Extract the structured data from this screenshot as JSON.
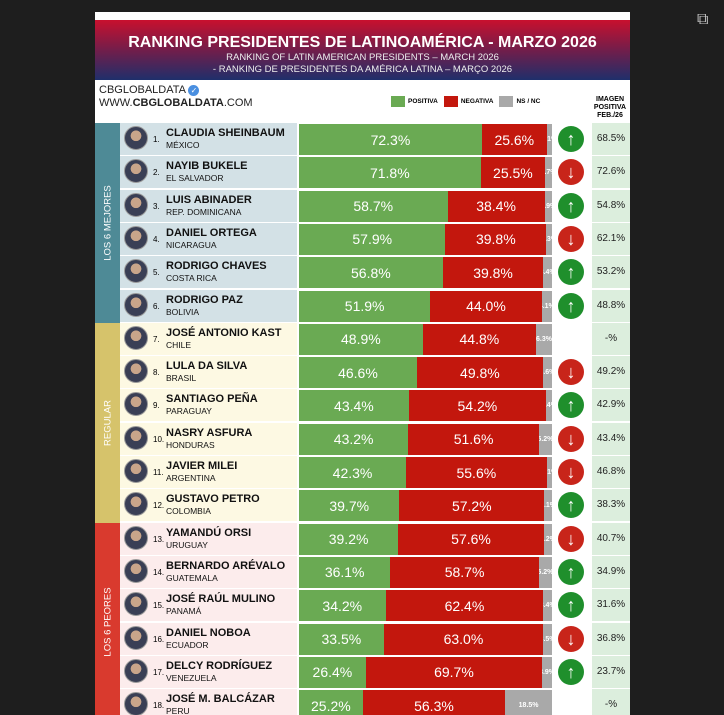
{
  "chart_data": {
    "type": "bar",
    "stacked": true,
    "title": "RANKING PRESIDENTES DE LATINOAMÉRICA - MARZO 2026",
    "subtitle": [
      "RANKING OF LATIN AMERICAN PRESIDENTS – MARCH 2026",
      "- RANKING DE PRESIDENTES DA AMÉRICA LATINA – MARÇO 2026"
    ],
    "legend": [
      {
        "label": "POSITIVA",
        "color": "#6aaa53"
      },
      {
        "label": "NEGATIVA",
        "color": "#c3170d"
      },
      {
        "label": "NS / NC",
        "color": "#a9a9a9"
      }
    ],
    "prev_header": "IMAGEN POSITIVA FEB./26",
    "groups": [
      {
        "label": "LOS 6 MEJORES",
        "color": "#4e8a96",
        "bg": "#d3e1e6"
      },
      {
        "label": "REGULAR",
        "color": "#d6c36b",
        "bg": "#fdf9e3"
      },
      {
        "label": "LOS 6 PEORES",
        "color": "#d93a2e",
        "bg": "#fcecec"
      }
    ],
    "rows": [
      {
        "rank": "1.",
        "name": "CLAUDIA SHEINBAUM",
        "country": "MÉXICO",
        "pos": 72.3,
        "neg": 25.6,
        "nsnc": 2.1,
        "trend": "up",
        "feb": "68.5%",
        "group": 0
      },
      {
        "rank": "2.",
        "name": "NAYIB BUKELE",
        "country": "EL SALVADOR",
        "pos": 71.8,
        "neg": 25.5,
        "nsnc": 2.7,
        "trend": "down",
        "feb": "72.6%",
        "group": 0
      },
      {
        "rank": "3.",
        "name": "LUIS ABINADER",
        "country": "REP. DOMINICANA",
        "pos": 58.7,
        "neg": 38.4,
        "nsnc": 2.9,
        "trend": "up",
        "feb": "54.8%",
        "group": 0
      },
      {
        "rank": "4.",
        "name": "DANIEL ORTEGA",
        "country": "NICARAGUA",
        "pos": 57.9,
        "neg": 39.8,
        "nsnc": 2.3,
        "trend": "down",
        "feb": "62.1%",
        "group": 0
      },
      {
        "rank": "5.",
        "name": "RODRIGO CHAVES",
        "country": "COSTA RICA",
        "pos": 56.8,
        "neg": 39.8,
        "nsnc": 3.4,
        "trend": "up",
        "feb": "53.2%",
        "group": 0
      },
      {
        "rank": "6.",
        "name": "RODRIGO PAZ",
        "country": "BOLIVIA",
        "pos": 51.9,
        "neg": 44.0,
        "nsnc": 4.1,
        "trend": "up",
        "feb": "48.8%",
        "group": 0
      },
      {
        "rank": "7.",
        "name": "JOSÉ ANTONIO KAST",
        "country": "CHILE",
        "pos": 48.9,
        "neg": 44.8,
        "nsnc": 6.3,
        "trend": "",
        "feb": "-%",
        "group": 1
      },
      {
        "rank": "8.",
        "name": "LULA DA SILVA",
        "country": "BRASIL",
        "pos": 46.6,
        "neg": 49.8,
        "nsnc": 3.6,
        "trend": "down",
        "feb": "49.2%",
        "group": 1
      },
      {
        "rank": "9.",
        "name": "SANTIAGO PEÑA",
        "country": "PARAGUAY",
        "pos": 43.4,
        "neg": 54.2,
        "nsnc": 2.4,
        "trend": "up",
        "feb": "42.9%",
        "group": 1
      },
      {
        "rank": "10.",
        "name": "NASRY ASFURA",
        "country": "HONDURAS",
        "pos": 43.2,
        "neg": 51.6,
        "nsnc": 5.2,
        "trend": "down",
        "feb": "43.4%",
        "group": 1
      },
      {
        "rank": "11.",
        "name": "JAVIER MILEI",
        "country": "ARGENTINA",
        "pos": 42.3,
        "neg": 55.6,
        "nsnc": 2.1,
        "trend": "down",
        "feb": "46.8%",
        "group": 1
      },
      {
        "rank": "12.",
        "name": "GUSTAVO PETRO",
        "country": "COLOMBIA",
        "pos": 39.7,
        "neg": 57.2,
        "nsnc": 3.1,
        "trend": "up",
        "feb": "38.3%",
        "group": 1
      },
      {
        "rank": "13.",
        "name": "YAMANDÚ ORSI",
        "country": "URUGUAY",
        "pos": 39.2,
        "neg": 57.6,
        "nsnc": 3.2,
        "trend": "down",
        "feb": "40.7%",
        "group": 2
      },
      {
        "rank": "14.",
        "name": "BERNARDO ARÉVALO",
        "country": "GUATEMALA",
        "pos": 36.1,
        "neg": 58.7,
        "nsnc": 5.2,
        "trend": "up",
        "feb": "34.9%",
        "group": 2
      },
      {
        "rank": "15.",
        "name": "JOSÉ RAÚL MULINO",
        "country": "PANAMÁ",
        "pos": 34.2,
        "neg": 62.4,
        "nsnc": 3.4,
        "trend": "up",
        "feb": "31.6%",
        "group": 2
      },
      {
        "rank": "16.",
        "name": "DANIEL NOBOA",
        "country": "ECUADOR",
        "pos": 33.5,
        "neg": 63.0,
        "nsnc": 3.5,
        "trend": "down",
        "feb": "36.8%",
        "group": 2
      },
      {
        "rank": "17.",
        "name": "DELCY RODRÍGUEZ",
        "country": "VENEZUELA",
        "pos": 26.4,
        "neg": 69.7,
        "nsnc": 3.9,
        "trend": "up",
        "feb": "23.7%",
        "group": 2
      },
      {
        "rank": "18.",
        "name": "JOSÉ M. BALCÁZAR",
        "country": "PERU",
        "pos": 25.2,
        "neg": 56.3,
        "nsnc": 18.5,
        "trend": "",
        "feb": "-%",
        "group": 2
      }
    ]
  },
  "brand": {
    "name": "CBGLOBALDATA",
    "url_pre": "WWW.",
    "url_bold": "CBGLOBALDATA",
    "url_post": ".COM"
  }
}
